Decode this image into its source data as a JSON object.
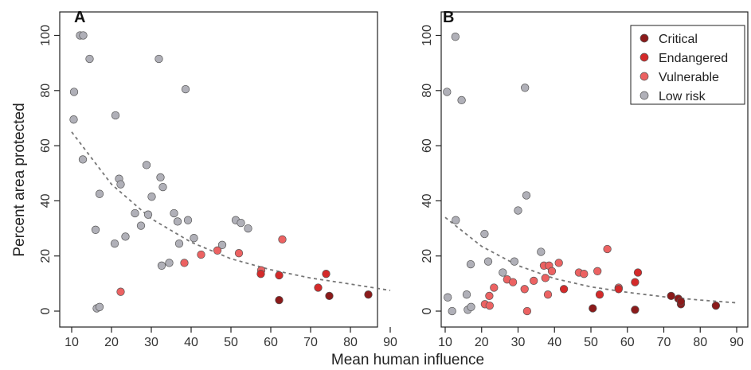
{
  "figure": {
    "xlabel": "Mean human influence",
    "ylabel": "Percent area protected"
  },
  "legend": {
    "placement": "top-right of panel B",
    "entries": [
      {
        "label": "Critical",
        "color": "#8b1a1a"
      },
      {
        "label": "Endangered",
        "color": "#d42a2a"
      },
      {
        "label": "Vulnerable",
        "color": "#ec6262"
      },
      {
        "label": "Low risk",
        "color": "#b0b0b8"
      }
    ]
  },
  "chart_data": [
    {
      "type": "scatter",
      "panel": "A",
      "xlim": [
        10,
        90
      ],
      "ylim": [
        0,
        100
      ],
      "xticks": [
        10,
        20,
        30,
        40,
        50,
        60,
        70,
        80,
        90
      ],
      "yticks": [
        0,
        20,
        40,
        60,
        80,
        100
      ],
      "grid": false,
      "trend": {
        "style": "dashed",
        "color": "#777777",
        "x": [
          10,
          20,
          30,
          40,
          50,
          60,
          70,
          80,
          90
        ],
        "y": [
          65,
          46,
          33.5,
          25,
          19,
          15,
          12,
          9.8,
          7.5
        ]
      },
      "series": [
        {
          "name": "Low risk",
          "color": "#b0b0b8",
          "points": [
            [
              10.5,
              69.5
            ],
            [
              10.6,
              79.5
            ],
            [
              12.1,
              100
            ],
            [
              12.9,
              100
            ],
            [
              12.8,
              55
            ],
            [
              14.5,
              91.5
            ],
            [
              16,
              29.5
            ],
            [
              16.3,
              1
            ],
            [
              17,
              1.5
            ],
            [
              17,
              42.5
            ],
            [
              20.8,
              24.5
            ],
            [
              21,
              71
            ],
            [
              21.9,
              48
            ],
            [
              22.3,
              46
            ],
            [
              23.5,
              27
            ],
            [
              25.9,
              35.5
            ],
            [
              27.4,
              31
            ],
            [
              28.8,
              53
            ],
            [
              29.2,
              35
            ],
            [
              30.1,
              41.5
            ],
            [
              31.9,
              91.5
            ],
            [
              32.3,
              48.5
            ],
            [
              32.6,
              16.5
            ],
            [
              32.9,
              45
            ],
            [
              34.5,
              17.5
            ],
            [
              35.7,
              35.5
            ],
            [
              36.6,
              32.5
            ],
            [
              37,
              24.5
            ],
            [
              38.6,
              80.5
            ],
            [
              39.2,
              33
            ],
            [
              40.7,
              26.5
            ],
            [
              47.8,
              24
            ],
            [
              51.2,
              33
            ],
            [
              52.5,
              32
            ],
            [
              54.3,
              30
            ]
          ]
        },
        {
          "name": "Vulnerable",
          "color": "#ec6262",
          "points": [
            [
              22.3,
              7
            ],
            [
              38.3,
              17.5
            ],
            [
              42.5,
              20.5
            ],
            [
              46.6,
              22
            ],
            [
              52,
              21
            ],
            [
              57.6,
              14.8
            ],
            [
              62.9,
              26
            ]
          ]
        },
        {
          "name": "Endangered",
          "color": "#d42a2a",
          "points": [
            [
              57.5,
              13.5
            ],
            [
              62.1,
              13
            ],
            [
              71.9,
              8.5
            ],
            [
              73.9,
              13.5
            ]
          ]
        },
        {
          "name": "Critical",
          "color": "#8b1a1a",
          "points": [
            [
              62.1,
              4
            ],
            [
              74.7,
              5.5
            ],
            [
              84.5,
              6
            ]
          ]
        }
      ]
    },
    {
      "type": "scatter",
      "panel": "B",
      "xlim": [
        10,
        90
      ],
      "ylim": [
        0,
        100
      ],
      "xticks": [
        10,
        20,
        30,
        40,
        50,
        60,
        70,
        80,
        90
      ],
      "yticks": [
        0,
        20,
        40,
        60,
        80,
        100
      ],
      "grid": false,
      "trend": {
        "style": "dashed",
        "color": "#777777",
        "x": [
          10,
          20,
          30,
          40,
          50,
          60,
          70,
          80,
          90
        ],
        "y": [
          34,
          23.5,
          16.5,
          11.8,
          8.8,
          6.8,
          5.2,
          4,
          3
        ]
      },
      "series": [
        {
          "name": "Low risk",
          "color": "#b0b0b8",
          "points": [
            [
              10.5,
              79.5
            ],
            [
              10.7,
              5
            ],
            [
              11.9,
              0
            ],
            [
              12.8,
              99.5
            ],
            [
              12.9,
              33
            ],
            [
              14.5,
              76.5
            ],
            [
              15.9,
              6
            ],
            [
              16.2,
              0.5
            ],
            [
              17,
              17
            ],
            [
              17.1,
              1.5
            ],
            [
              20.8,
              28
            ],
            [
              21.8,
              18
            ],
            [
              25.8,
              14
            ],
            [
              29,
              18
            ],
            [
              30,
              36.5
            ],
            [
              31.9,
              81
            ],
            [
              32.3,
              42
            ],
            [
              36.3,
              21.5
            ]
          ]
        },
        {
          "name": "Vulnerable",
          "color": "#ec6262",
          "points": [
            [
              20.9,
              2.5
            ],
            [
              22.1,
              5.5
            ],
            [
              22.2,
              2
            ],
            [
              23.4,
              8.5
            ],
            [
              27,
              11.5
            ],
            [
              28.6,
              10.5
            ],
            [
              31.8,
              8
            ],
            [
              32.5,
              0
            ],
            [
              34.3,
              11
            ],
            [
              37.1,
              16.5
            ],
            [
              37.5,
              12
            ],
            [
              38.2,
              6
            ],
            [
              38.5,
              16.5
            ],
            [
              39.3,
              14.5
            ],
            [
              41.2,
              17.5
            ],
            [
              46.7,
              14
            ],
            [
              48.1,
              13.5
            ],
            [
              51.8,
              14.5
            ],
            [
              54.5,
              22.5
            ],
            [
              57.6,
              8.5
            ]
          ]
        },
        {
          "name": "Endangered",
          "color": "#d42a2a",
          "points": [
            [
              42.6,
              8
            ],
            [
              52.4,
              6
            ],
            [
              57.6,
              8
            ],
            [
              62.1,
              10.5
            ],
            [
              62.9,
              14
            ]
          ]
        },
        {
          "name": "Critical",
          "color": "#8b1a1a",
          "points": [
            [
              50.5,
              1
            ],
            [
              62.1,
              0.5
            ],
            [
              72,
              5.5
            ],
            [
              74,
              4.5
            ],
            [
              74.7,
              2.5
            ],
            [
              74.7,
              3.5
            ],
            [
              84.3,
              2
            ]
          ]
        }
      ]
    }
  ]
}
